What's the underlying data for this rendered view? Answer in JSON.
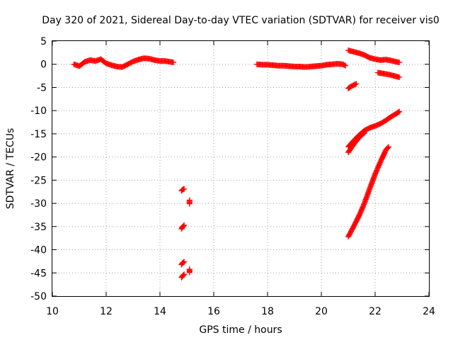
{
  "chart_data": {
    "type": "scatter",
    "title": "Day 320 of 2021, Sidereal Day-to-day VTEC variation (SDTVAR) for receiver vis0",
    "xlabel": "GPS time / hours",
    "ylabel": "SDTVAR / TECUs",
    "xlim": [
      10,
      24
    ],
    "ylim": [
      -50,
      5
    ],
    "xticks": [
      "10",
      "12",
      "14",
      "16",
      "18",
      "20",
      "22",
      "24"
    ],
    "yticks": [
      "5",
      "0",
      "-5",
      "-10",
      "-15",
      "-20",
      "-25",
      "-30",
      "-35",
      "-40",
      "-45",
      "-50"
    ],
    "grid": true,
    "marker": "+",
    "color": "#ff0000",
    "series": [
      {
        "points": [
          [
            10.8,
            0.0
          ],
          [
            11.0,
            -0.4
          ],
          [
            11.2,
            0.5
          ],
          [
            11.4,
            0.9
          ],
          [
            11.6,
            0.7
          ],
          [
            11.8,
            1.1
          ],
          [
            12.0,
            0.2
          ],
          [
            12.2,
            -0.2
          ],
          [
            12.4,
            -0.5
          ],
          [
            12.6,
            -0.6
          ],
          [
            12.8,
            0.0
          ],
          [
            13.0,
            0.6
          ],
          [
            13.2,
            1.0
          ],
          [
            13.4,
            1.3
          ],
          [
            13.6,
            1.2
          ],
          [
            13.8,
            0.9
          ],
          [
            14.0,
            0.7
          ],
          [
            14.2,
            0.7
          ],
          [
            14.4,
            0.5
          ],
          [
            14.5,
            0.4
          ]
        ]
      },
      {
        "points": [
          [
            17.6,
            0.0
          ],
          [
            17.8,
            -0.1
          ],
          [
            18.0,
            -0.1
          ],
          [
            18.2,
            -0.2
          ],
          [
            18.4,
            -0.3
          ],
          [
            18.6,
            -0.3
          ],
          [
            18.8,
            -0.4
          ],
          [
            19.0,
            -0.5
          ],
          [
            19.2,
            -0.5
          ],
          [
            19.4,
            -0.6
          ],
          [
            19.6,
            -0.5
          ],
          [
            19.8,
            -0.4
          ],
          [
            20.0,
            -0.3
          ],
          [
            20.2,
            -0.1
          ],
          [
            20.4,
            0.0
          ],
          [
            20.6,
            0.1
          ],
          [
            20.8,
            0.0
          ],
          [
            20.9,
            -0.3
          ]
        ]
      },
      {
        "points": [
          [
            21.0,
            3.0
          ],
          [
            21.2,
            2.7
          ],
          [
            21.4,
            2.4
          ],
          [
            21.6,
            2.0
          ],
          [
            21.8,
            1.4
          ],
          [
            22.0,
            1.1
          ],
          [
            22.2,
            0.9
          ],
          [
            22.4,
            1.0
          ],
          [
            22.6,
            0.8
          ],
          [
            22.8,
            0.5
          ],
          [
            22.9,
            0.4
          ]
        ]
      },
      {
        "points": [
          [
            22.1,
            -1.8
          ],
          [
            22.3,
            -2.0
          ],
          [
            22.5,
            -2.2
          ],
          [
            22.7,
            -2.5
          ],
          [
            22.9,
            -2.8
          ]
        ]
      },
      {
        "points": [
          [
            21.0,
            -5.2
          ],
          [
            21.1,
            -4.8
          ],
          [
            21.2,
            -4.5
          ],
          [
            21.3,
            -4.2
          ]
        ]
      },
      {
        "points": [
          [
            21.0,
            -17.8
          ],
          [
            21.2,
            -16.5
          ],
          [
            21.4,
            -15.3
          ],
          [
            21.6,
            -14.3
          ],
          [
            21.8,
            -13.7
          ],
          [
            22.0,
            -13.3
          ],
          [
            22.2,
            -12.8
          ],
          [
            22.4,
            -12.1
          ],
          [
            22.6,
            -11.3
          ],
          [
            22.8,
            -10.6
          ],
          [
            22.9,
            -10.2
          ]
        ]
      },
      {
        "points": [
          [
            21.0,
            -19.0
          ],
          [
            21.2,
            -17.3
          ],
          [
            21.4,
            -15.8
          ],
          [
            21.6,
            -14.8
          ]
        ]
      },
      {
        "points": [
          [
            21.0,
            -37.2
          ],
          [
            21.2,
            -35.0
          ],
          [
            21.4,
            -32.7
          ],
          [
            21.6,
            -30.0
          ],
          [
            21.8,
            -26.8
          ],
          [
            22.0,
            -23.7
          ],
          [
            22.2,
            -21.0
          ],
          [
            22.4,
            -18.5
          ],
          [
            22.5,
            -17.8
          ]
        ]
      },
      {
        "points": [
          [
            14.8,
            -27.3
          ],
          [
            14.85,
            -27.0
          ],
          [
            14.9,
            -26.9
          ]
        ]
      },
      {
        "points": [
          [
            14.8,
            -35.5
          ],
          [
            14.85,
            -35.0
          ],
          [
            14.9,
            -34.7
          ]
        ]
      },
      {
        "points": [
          [
            14.8,
            -43.2
          ],
          [
            14.85,
            -42.8
          ],
          [
            14.9,
            -42.6
          ]
        ]
      },
      {
        "points": [
          [
            14.8,
            -46.0
          ],
          [
            14.85,
            -45.6
          ],
          [
            14.9,
            -45.3
          ]
        ]
      },
      {
        "points": [
          [
            15.1,
            -29.3
          ],
          [
            15.1,
            -30.1
          ]
        ]
      },
      {
        "points": [
          [
            15.1,
            -44.2
          ],
          [
            15.1,
            -44.9
          ]
        ]
      }
    ]
  }
}
